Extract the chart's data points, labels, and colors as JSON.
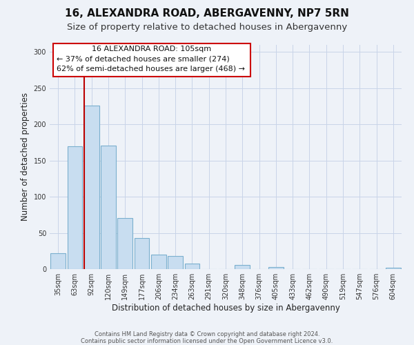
{
  "title": "16, ALEXANDRA ROAD, ABERGAVENNY, NP7 5RN",
  "subtitle": "Size of property relative to detached houses in Abergavenny",
  "xlabel": "Distribution of detached houses by size in Abergavenny",
  "ylabel": "Number of detached properties",
  "bar_labels": [
    "35sqm",
    "63sqm",
    "92sqm",
    "120sqm",
    "149sqm",
    "177sqm",
    "206sqm",
    "234sqm",
    "263sqm",
    "291sqm",
    "320sqm",
    "348sqm",
    "376sqm",
    "405sqm",
    "433sqm",
    "462sqm",
    "490sqm",
    "519sqm",
    "547sqm",
    "576sqm",
    "604sqm"
  ],
  "bar_values": [
    22,
    170,
    226,
    171,
    71,
    43,
    20,
    18,
    8,
    0,
    0,
    6,
    0,
    3,
    0,
    0,
    0,
    0,
    0,
    0,
    2
  ],
  "bar_color": "#c8ddf0",
  "bar_edge_color": "#7aafce",
  "vline_x_index": 2,
  "vline_color": "#bb0000",
  "ylim": [
    0,
    310
  ],
  "yticks": [
    0,
    50,
    100,
    150,
    200,
    250,
    300
  ],
  "annotation_line0": "16 ALEXANDRA ROAD: 105sqm",
  "annotation_line1": "← 37% of detached houses are smaller (274)",
  "annotation_line2": "62% of semi-detached houses are larger (468) →",
  "annotation_box_color": "#ffffff",
  "annotation_box_edge": "#cc0000",
  "footer_line1": "Contains HM Land Registry data © Crown copyright and database right 2024.",
  "footer_line2": "Contains public sector information licensed under the Open Government Licence v3.0.",
  "bg_color": "#eef2f8",
  "grid_color": "#c8d4e8",
  "title_fontsize": 11,
  "subtitle_fontsize": 9.5,
  "tick_fontsize": 7,
  "axis_label_fontsize": 8.5
}
